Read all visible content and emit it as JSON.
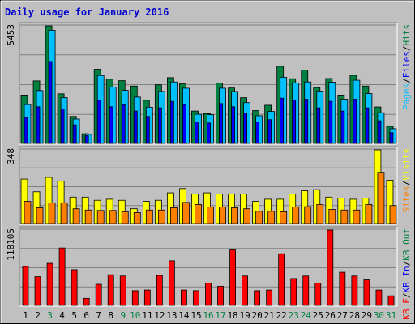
{
  "chart_data": {
    "type": "bar",
    "title": "Daily usage for January 2016",
    "categories": [
      "1",
      "2",
      "3",
      "4",
      "5",
      "6",
      "7",
      "8",
      "9",
      "10",
      "11",
      "12",
      "13",
      "14",
      "15",
      "16",
      "17",
      "18",
      "19",
      "20",
      "21",
      "22",
      "23",
      "24",
      "25",
      "26",
      "27",
      "28",
      "29",
      "30",
      "31"
    ],
    "weekend_days": [
      "3",
      "9",
      "10",
      "16",
      "17",
      "23",
      "24",
      "30",
      "31"
    ],
    "colors": {
      "hits": "#008040",
      "files": "#00c0ff",
      "pages": "#0000ff",
      "visits": "#ffff00",
      "sites": "#ff8000",
      "kbin": "#0000ff",
      "kbout": "#ff0000",
      "kbf": "#ff0000",
      "weekday_label": "#000000",
      "weekend_label": "#008040"
    },
    "panels": [
      {
        "id": "hits-panel",
        "ymax_label": "5453",
        "ylim": [
          0,
          5453
        ],
        "legend": [
          {
            "text": "Pages",
            "color": "#00c0ff"
          },
          {
            "text": "/",
            "color": "#000000"
          },
          {
            "text": "Files",
            "color": "#0000ff"
          },
          {
            "text": "/",
            "color": "#000000"
          },
          {
            "text": "Hits",
            "color": "#008040"
          }
        ],
        "series": [
          {
            "name": "Hits",
            "color": "#008040",
            "values": [
              2240,
              2900,
              5453,
              2300,
              1250,
              450,
              3440,
              2980,
              2910,
              2660,
              2000,
              2720,
              3050,
              2760,
              1500,
              1380,
              2800,
              2570,
              2120,
              1520,
              1770,
              3580,
              3000,
              3400,
              2590,
              3010,
              2240,
              3160,
              2660,
              1690,
              790
            ]
          },
          {
            "name": "Files",
            "color": "#00c0ff",
            "values": [
              1800,
              2450,
              5250,
              2120,
              1130,
              420,
              3150,
              2620,
              2460,
              2150,
              1680,
              2410,
              2850,
              2560,
              1350,
              1330,
              2560,
              2410,
              1890,
              1280,
              1480,
              3070,
              2800,
              2850,
              2430,
              2840,
              2050,
              2930,
              2310,
              1420,
              680
            ]
          },
          {
            "name": "Pages",
            "color": "#0000ff",
            "values": [
              1200,
              1700,
              3800,
              1600,
              860,
              360,
              2000,
              1700,
              1800,
              1500,
              1250,
              1650,
              1950,
              1800,
              1000,
              950,
              1850,
              1700,
              1400,
              1000,
              1100,
              2100,
              2000,
              2050,
              1650,
              1950,
              1500,
              2050,
              1650,
              1050,
              500
            ]
          }
        ]
      },
      {
        "id": "visits-panel",
        "ymax_label": "348",
        "ylim": [
          0,
          348
        ],
        "legend": [
          {
            "text": "Sites",
            "color": "#ff8000"
          },
          {
            "text": "/",
            "color": "#000000"
          },
          {
            "text": "Visits",
            "color": "#ffff00"
          }
        ],
        "series": [
          {
            "name": "Visits",
            "color": "#ffff00",
            "values": [
              210,
              150,
              218,
              200,
              125,
              125,
              110,
              115,
              110,
              70,
              105,
              110,
              145,
              165,
              140,
              145,
              140,
              140,
              140,
              105,
              115,
              115,
              140,
              155,
              160,
              125,
              120,
              115,
              120,
              348,
              205
            ]
          },
          {
            "name": "Sites",
            "color": "#ff8000",
            "values": [
              105,
              75,
              98,
              98,
              70,
              64,
              62,
              62,
              56,
              52,
              64,
              64,
              75,
              100,
              90,
              78,
              78,
              75,
              70,
              58,
              58,
              56,
              78,
              80,
              90,
              67,
              64,
              64,
              90,
              242,
              85
            ]
          }
        ]
      },
      {
        "id": "kbytes-panel",
        "ymax_label": "118105",
        "ylim": [
          0,
          118105
        ],
        "legend": [
          {
            "text": "KB F",
            "color": "#ff0000"
          },
          {
            "text": "/",
            "color": "#000000"
          },
          {
            "text": "KB In",
            "color": "#0000ff"
          },
          {
            "text": "/",
            "color": "#000000"
          },
          {
            "text": "KB Out",
            "color": "#008040"
          }
        ],
        "series": [
          {
            "name": "KB F",
            "color": "#ff0000",
            "values": [
              61000,
              45000,
              66000,
              90000,
              56000,
              11000,
              33000,
              48000,
              46000,
              23000,
              24000,
              47000,
              70000,
              24000,
              23000,
              35000,
              30000,
              87000,
              46000,
              23000,
              24000,
              81000,
              42000,
              46000,
              35000,
              118105,
              52000,
              46000,
              40000,
              24000,
              15000
            ]
          }
        ]
      }
    ]
  }
}
